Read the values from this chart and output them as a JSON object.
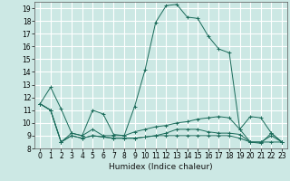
{
  "xlabel": "Humidex (Indice chaleur)",
  "bg_color": "#cce8e4",
  "grid_color": "#ffffff",
  "line_color": "#1a6b5a",
  "xlim": [
    -0.5,
    23.5
  ],
  "ylim": [
    8,
    19.5
  ],
  "yticks": [
    8,
    9,
    10,
    11,
    12,
    13,
    14,
    15,
    16,
    17,
    18,
    19
  ],
  "xticks": [
    0,
    1,
    2,
    3,
    4,
    5,
    6,
    7,
    8,
    9,
    10,
    11,
    12,
    13,
    14,
    15,
    16,
    17,
    18,
    19,
    20,
    21,
    22,
    23
  ],
  "series": [
    [
      11.5,
      12.8,
      11.1,
      9.2,
      9.0,
      11.0,
      10.7,
      9.1,
      9.0,
      11.3,
      14.2,
      17.9,
      19.2,
      19.3,
      18.3,
      18.2,
      16.8,
      15.8,
      15.5,
      9.5,
      10.5,
      10.4,
      9.2,
      8.5
    ],
    [
      11.5,
      11.0,
      8.5,
      9.2,
      9.0,
      9.5,
      9.0,
      9.0,
      9.0,
      9.3,
      9.5,
      9.7,
      9.8,
      10.0,
      10.1,
      10.3,
      10.4,
      10.5,
      10.4,
      9.5,
      8.5,
      8.5,
      8.5,
      8.5
    ],
    [
      11.5,
      11.0,
      8.5,
      9.0,
      8.8,
      9.0,
      8.9,
      8.8,
      8.8,
      8.8,
      8.9,
      9.0,
      9.0,
      9.0,
      9.0,
      9.0,
      9.0,
      9.0,
      9.0,
      8.8,
      8.5,
      8.5,
      9.0,
      8.5
    ],
    [
      11.5,
      11.0,
      8.5,
      9.0,
      8.8,
      9.0,
      8.9,
      8.8,
      8.8,
      8.8,
      8.9,
      9.0,
      9.2,
      9.5,
      9.5,
      9.5,
      9.3,
      9.2,
      9.2,
      9.1,
      8.5,
      8.4,
      9.2,
      8.5
    ]
  ],
  "marker": "+",
  "markersize": 3,
  "linewidth": 0.7,
  "tick_labelsize": 5.5,
  "xlabel_fontsize": 6.5
}
